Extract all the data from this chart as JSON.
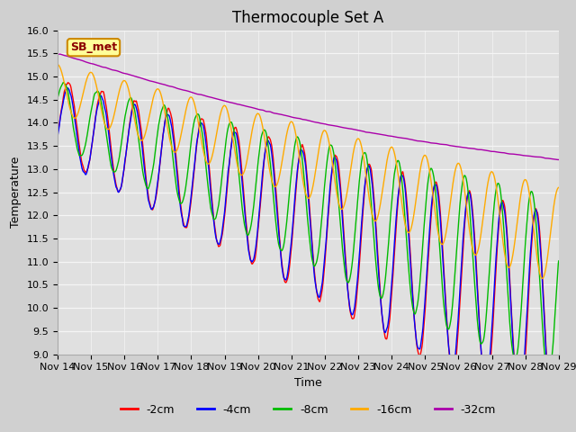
{
  "title": "Thermocouple Set A",
  "xlabel": "Time",
  "ylabel": "Temperature",
  "ylim": [
    9.0,
    16.0
  ],
  "yticks": [
    9.0,
    9.5,
    10.0,
    10.5,
    11.0,
    11.5,
    12.0,
    12.5,
    13.0,
    13.5,
    14.0,
    14.5,
    15.0,
    15.5,
    16.0
  ],
  "xtick_labels": [
    "Nov 14",
    "Nov 15",
    "Nov 16",
    "Nov 17",
    "Nov 18",
    "Nov 19",
    "Nov 20",
    "Nov 21",
    "Nov 22",
    "Nov 23",
    "Nov 24",
    "Nov 25",
    "Nov 26",
    "Nov 27",
    "Nov 28",
    "Nov 29"
  ],
  "series_labels": [
    "-2cm",
    "-4cm",
    "-8cm",
    "-16cm",
    "-32cm"
  ],
  "series_colors": [
    "#ff0000",
    "#0000ff",
    "#00bb00",
    "#ffaa00",
    "#aa00aa"
  ],
  "legend_label": "SB_met",
  "legend_bg": "#ffff99",
  "legend_border": "#cc8800",
  "fig_bg": "#d0d0d0",
  "plot_bg": "#e0e0e0",
  "grid_color": "#f5f5f5",
  "title_fontsize": 12,
  "axis_fontsize": 9,
  "tick_fontsize": 8,
  "legend_fontsize": 9,
  "linewidth": 1.0
}
